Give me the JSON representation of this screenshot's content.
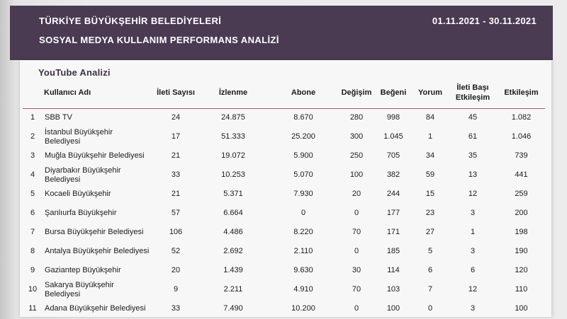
{
  "header": {
    "title_line1": "TÜRKİYE BÜYÜKŞEHİR BELEDİYELERİ",
    "title_line2": "SOSYAL MEDYA KULLANIM PERFORMANS ANALİZİ",
    "date_range": "01.11.2021 - 30.11.2021"
  },
  "section": {
    "title": "YouTube Analizi"
  },
  "table": {
    "columns": [
      "Kullanıcı Adı",
      "İleti Sayısı",
      "İzlenme",
      "Abone",
      "Değişim",
      "Beğeni",
      "Yorum",
      "İleti Başı Etkileşim",
      "Etkileşim"
    ],
    "rows": [
      [
        "1",
        "SBB TV",
        "24",
        "24.875",
        "8.670",
        "280",
        "998",
        "84",
        "45",
        "1.082"
      ],
      [
        "2",
        "İstanbul Büyükşehir Belediyesi",
        "17",
        "51.333",
        "25.200",
        "300",
        "1.045",
        "1",
        "61",
        "1.046"
      ],
      [
        "3",
        "Muğla Büyükşehir Belediyesi",
        "21",
        "19.072",
        "5.900",
        "250",
        "705",
        "34",
        "35",
        "739"
      ],
      [
        "4",
        "Diyarbakır Büyükşehir Belediyesi",
        "33",
        "10.253",
        "5.070",
        "100",
        "382",
        "59",
        "13",
        "441"
      ],
      [
        "5",
        "Kocaeli Büyükşehir",
        "21",
        "5.371",
        "7.930",
        "20",
        "244",
        "15",
        "12",
        "259"
      ],
      [
        "6",
        "Şanlıurfa Büyükşehir",
        "57",
        "6.664",
        "0",
        "0",
        "177",
        "23",
        "3",
        "200"
      ],
      [
        "7",
        "Bursa Büyükşehir Belediyesi",
        "106",
        "4.486",
        "8.220",
        "70",
        "171",
        "27",
        "1",
        "198"
      ],
      [
        "8",
        "Antalya Büyükşehir Belediyesi",
        "52",
        "2.692",
        "2.110",
        "0",
        "185",
        "5",
        "3",
        "190"
      ],
      [
        "9",
        "Gaziantep Büyükşehir",
        "20",
        "1.439",
        "9.630",
        "30",
        "114",
        "6",
        "6",
        "120"
      ],
      [
        "10",
        "Sakarya Büyükşehir Belediyesi",
        "9",
        "2.211",
        "4.910",
        "70",
        "103",
        "7",
        "12",
        "110"
      ],
      [
        "11",
        "Adana Büyükşehir Belediyesi",
        "33",
        "7.490",
        "10.200",
        "0",
        "100",
        "0",
        "3",
        "100"
      ]
    ]
  },
  "colors": {
    "band_background": "#4a3b53",
    "band_text": "#ffffff",
    "panel_background": "#f8f7f8",
    "header_rule": "#b2566b",
    "section_title_text": "#3c3244",
    "body_text": "#1b1b1b"
  }
}
